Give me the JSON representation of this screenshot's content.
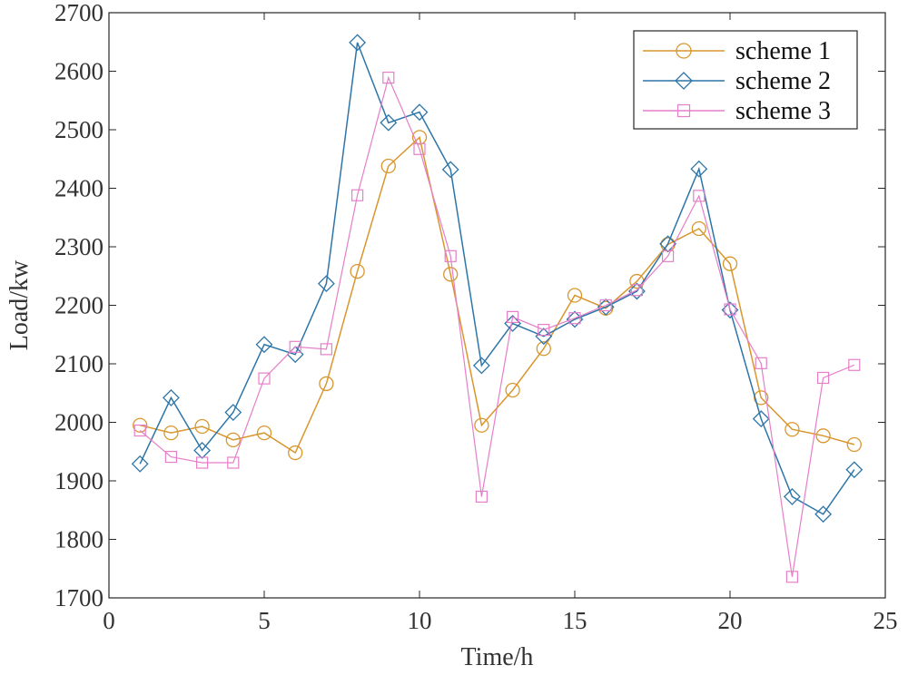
{
  "chart_data": {
    "type": "line",
    "title": "",
    "xlabel": "Time/h",
    "ylabel": "Load/kw",
    "xlim": [
      0,
      25
    ],
    "ylim": [
      1700,
      2700
    ],
    "xticks": [
      0,
      5,
      10,
      15,
      20,
      25
    ],
    "yticks": [
      1700,
      1800,
      1900,
      2000,
      2100,
      2200,
      2300,
      2400,
      2500,
      2600,
      2700
    ],
    "grid": false,
    "legend_position": "top-right",
    "x": [
      1,
      2,
      3,
      4,
      5,
      6,
      7,
      8,
      9,
      10,
      11,
      12,
      13,
      14,
      15,
      16,
      17,
      18,
      19,
      20,
      21,
      22,
      23,
      24
    ],
    "series": [
      {
        "name": "scheme 1",
        "color": "#d9962e",
        "marker": "circle",
        "values": [
          1995,
          1982,
          1993,
          1970,
          1982,
          1948,
          2066,
          2258,
          2438,
          2487,
          2253,
          1995,
          2055,
          2126,
          2217,
          2195,
          2241,
          2304,
          2331,
          2271,
          2042,
          1988,
          1977,
          1962
        ]
      },
      {
        "name": "scheme 2",
        "color": "#2d75a8",
        "marker": "diamond",
        "values": [
          1929,
          2042,
          1952,
          2017,
          2133,
          2116,
          2237,
          2649,
          2512,
          2530,
          2432,
          2097,
          2169,
          2147,
          2176,
          2197,
          2224,
          2305,
          2433,
          2192,
          2006,
          1873,
          1843,
          1919
        ]
      },
      {
        "name": "scheme 3",
        "color": "#e57fc9",
        "marker": "square",
        "values": [
          1986,
          1941,
          1931,
          1931,
          2075,
          2129,
          2125,
          2388,
          2589,
          2467,
          2284,
          1873,
          2180,
          2158,
          2178,
          2200,
          2226,
          2284,
          2387,
          2193,
          2101,
          1736,
          2076,
          2098
        ]
      }
    ]
  }
}
